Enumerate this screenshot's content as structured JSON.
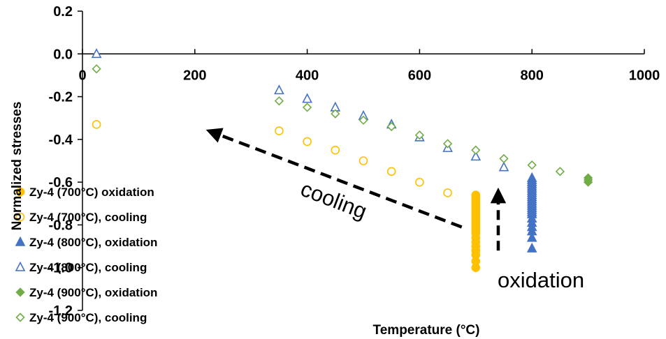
{
  "chart_data": {
    "type": "scatter",
    "xlabel": "Temperature (°C)",
    "ylabel": "Normalized stresses",
    "xlim": [
      0,
      1000
    ],
    "ylim": [
      -1.2,
      0.2
    ],
    "x_ticks": [
      "0",
      "200",
      "400",
      "600",
      "800",
      "1000"
    ],
    "y_ticks": [
      "0.2",
      "0.0",
      "-0.2",
      "-0.4",
      "-0.6",
      "-0.8",
      "-1.0",
      "-1.2"
    ],
    "grid": false,
    "legend_position": "bottom-left",
    "colors": {
      "c700": "#FFC000",
      "c800": "#4472C4",
      "c900": "#70AD47"
    },
    "series": [
      {
        "name": "Zy-4 (700°C) oxidation",
        "marker": "circle",
        "filled": true,
        "color": "#FFC000",
        "points": [
          [
            700,
            -0.66
          ],
          [
            700,
            -0.67
          ],
          [
            700,
            -0.68
          ],
          [
            700,
            -0.69
          ],
          [
            700,
            -0.7
          ],
          [
            700,
            -0.71
          ],
          [
            700,
            -0.72
          ],
          [
            700,
            -0.73
          ],
          [
            700,
            -0.74
          ],
          [
            700,
            -0.75
          ],
          [
            700,
            -0.76
          ],
          [
            700,
            -0.77
          ],
          [
            700,
            -0.78
          ],
          [
            700,
            -0.79
          ],
          [
            700,
            -0.8
          ],
          [
            700,
            -0.81
          ],
          [
            700,
            -0.82
          ],
          [
            700,
            -0.83
          ],
          [
            700,
            -0.84
          ],
          [
            700,
            -0.86
          ],
          [
            700,
            -0.88
          ],
          [
            700,
            -0.9
          ],
          [
            700,
            -0.92
          ],
          [
            700,
            -0.94
          ],
          [
            700,
            -0.97
          ],
          [
            700,
            -1.0
          ]
        ]
      },
      {
        "name": "Zy-4 (700°C), cooling",
        "marker": "circle",
        "filled": false,
        "color": "#FFC000",
        "points": [
          [
            25,
            -0.33
          ],
          [
            350,
            -0.36
          ],
          [
            400,
            -0.41
          ],
          [
            450,
            -0.45
          ],
          [
            500,
            -0.5
          ],
          [
            550,
            -0.55
          ],
          [
            600,
            -0.6
          ],
          [
            650,
            -0.65
          ]
        ]
      },
      {
        "name": "Zy-4 (800°C), oxidation",
        "marker": "triangle",
        "filled": true,
        "color": "#4472C4",
        "points": [
          [
            800,
            -0.58
          ],
          [
            800,
            -0.59
          ],
          [
            800,
            -0.6
          ],
          [
            800,
            -0.61
          ],
          [
            800,
            -0.62
          ],
          [
            800,
            -0.63
          ],
          [
            800,
            -0.64
          ],
          [
            800,
            -0.65
          ],
          [
            800,
            -0.66
          ],
          [
            800,
            -0.67
          ],
          [
            800,
            -0.68
          ],
          [
            800,
            -0.69
          ],
          [
            800,
            -0.7
          ],
          [
            800,
            -0.71
          ],
          [
            800,
            -0.72
          ],
          [
            800,
            -0.73
          ],
          [
            800,
            -0.74
          ],
          [
            800,
            -0.75
          ],
          [
            800,
            -0.77
          ],
          [
            800,
            -0.79
          ],
          [
            800,
            -0.81
          ],
          [
            800,
            -0.83
          ],
          [
            800,
            -0.86
          ],
          [
            800,
            -0.91
          ]
        ]
      },
      {
        "name": "Zy-4 (800°C), cooling",
        "marker": "triangle",
        "filled": false,
        "color": "#4472C4",
        "points": [
          [
            25,
            0.0
          ],
          [
            350,
            -0.17
          ],
          [
            400,
            -0.21
          ],
          [
            450,
            -0.25
          ],
          [
            500,
            -0.29
          ],
          [
            550,
            -0.33
          ],
          [
            600,
            -0.39
          ],
          [
            650,
            -0.44
          ],
          [
            700,
            -0.48
          ],
          [
            750,
            -0.53
          ]
        ]
      },
      {
        "name": "Zy-4 (900°C), oxidation",
        "marker": "diamond",
        "filled": true,
        "color": "#70AD47",
        "points": [
          [
            900,
            -0.58
          ],
          [
            900,
            -0.59
          ],
          [
            900,
            -0.6
          ]
        ]
      },
      {
        "name": "Zy-4 (900°C), cooling",
        "marker": "diamond",
        "filled": false,
        "color": "#70AD47",
        "points": [
          [
            25,
            -0.07
          ],
          [
            350,
            -0.22
          ],
          [
            400,
            -0.25
          ],
          [
            450,
            -0.28
          ],
          [
            500,
            -0.31
          ],
          [
            550,
            -0.34
          ],
          [
            600,
            -0.38
          ],
          [
            650,
            -0.42
          ],
          [
            700,
            -0.45
          ],
          [
            750,
            -0.49
          ],
          [
            800,
            -0.52
          ],
          [
            850,
            -0.55
          ]
        ]
      }
    ],
    "annotations": [
      {
        "text": "cooling",
        "arrow_from": [
          675,
          -0.81
        ],
        "arrow_to": [
          225,
          -0.36
        ]
      },
      {
        "text": "oxidation",
        "arrow_from": [
          740,
          -0.92
        ],
        "arrow_to": [
          740,
          -0.64
        ]
      }
    ]
  }
}
